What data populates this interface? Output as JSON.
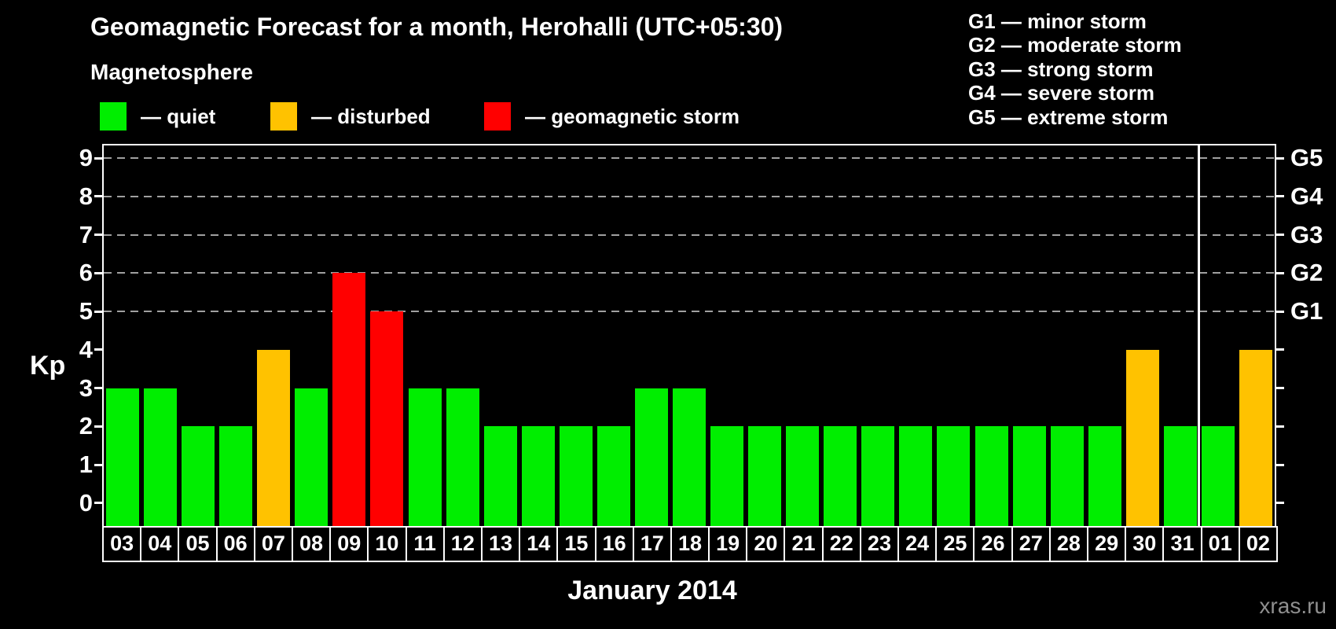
{
  "header": {
    "title": "Geomagnetic Forecast for a month, Herohalli (UTC+05:30)",
    "subtitle": "Magnetosphere"
  },
  "legend": {
    "items": [
      {
        "key": "quiet",
        "label": "— quiet"
      },
      {
        "key": "disturbed",
        "label": "— disturbed"
      },
      {
        "key": "storm",
        "label": "— geomagnetic storm"
      }
    ]
  },
  "storm_scale_legend": {
    "items": [
      "G1 — minor storm",
      "G2 — moderate storm",
      "G3 — strong storm",
      "G4 — severe storm",
      "G5 — extreme storm"
    ]
  },
  "chart_data": {
    "type": "bar",
    "title": "Geomagnetic Forecast for a month, Herohalli (UTC+05:30)",
    "xlabel": "January 2014",
    "ylabel": "Kp",
    "ylim": [
      -0.62,
      9.33
    ],
    "yticks": [
      0,
      1,
      2,
      3,
      4,
      5,
      6,
      7,
      8,
      9
    ],
    "gridlines_at": [
      5,
      6,
      7,
      8,
      9
    ],
    "grid": "dashed",
    "legend_position": "top",
    "right_axis": [
      {
        "label": "G1",
        "kp": 5
      },
      {
        "label": "G2",
        "kp": 6
      },
      {
        "label": "G3",
        "kp": 7
      },
      {
        "label": "G4",
        "kp": 8
      },
      {
        "label": "G5",
        "kp": 9
      }
    ],
    "categories": [
      "03",
      "04",
      "05",
      "06",
      "07",
      "08",
      "09",
      "10",
      "11",
      "12",
      "13",
      "14",
      "15",
      "16",
      "17",
      "18",
      "19",
      "20",
      "21",
      "22",
      "23",
      "24",
      "25",
      "26",
      "27",
      "28",
      "29",
      "30",
      "31",
      "01",
      "02"
    ],
    "values": [
      3,
      3,
      2,
      2,
      4,
      3,
      6,
      5,
      3,
      3,
      2,
      2,
      2,
      2,
      3,
      3,
      2,
      2,
      2,
      2,
      2,
      2,
      2,
      2,
      2,
      2,
      2,
      4,
      2,
      2,
      4
    ],
    "statuses": [
      "quiet",
      "quiet",
      "quiet",
      "quiet",
      "disturbed",
      "quiet",
      "storm",
      "storm",
      "quiet",
      "quiet",
      "quiet",
      "quiet",
      "quiet",
      "quiet",
      "quiet",
      "quiet",
      "quiet",
      "quiet",
      "quiet",
      "quiet",
      "quiet",
      "quiet",
      "quiet",
      "quiet",
      "quiet",
      "quiet",
      "quiet",
      "disturbed",
      "quiet",
      "quiet",
      "disturbed"
    ],
    "month_separator_after": "31"
  },
  "footer": {
    "xaxis_title": "January 2014",
    "watermark": "xras.ru"
  },
  "colors": {
    "quiet": "#00EE00",
    "disturbed": "#FFC200",
    "storm": "#FF0000",
    "grid": "#A0A0A0",
    "axis": "#FFFFFF",
    "background": "#000000",
    "watermark": "#8F8F8F"
  }
}
